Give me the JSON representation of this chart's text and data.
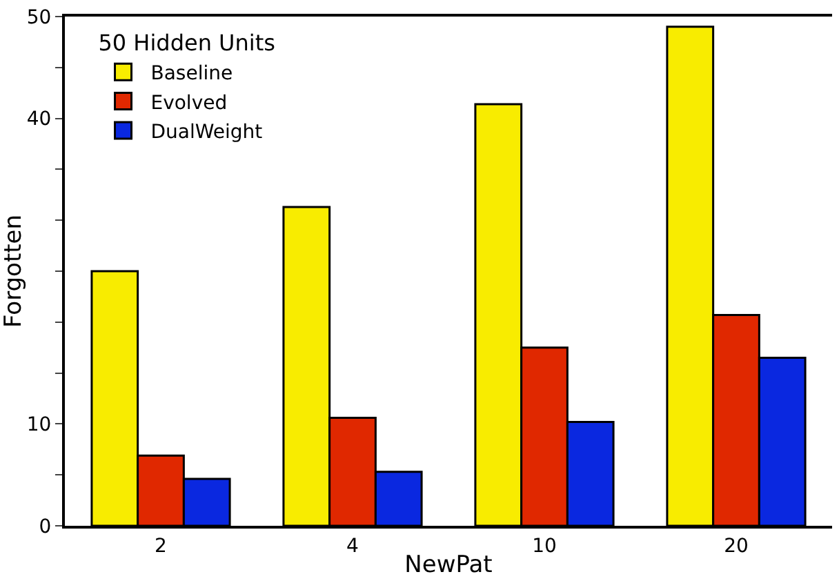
{
  "chart_data": {
    "type": "bar",
    "xlabel": "NewPat",
    "ylabel": "Forgotten",
    "legend_title": "50 Hidden Units",
    "legend": "top left",
    "categories": [
      "2",
      "4",
      "10",
      "20"
    ],
    "ylim": [
      0,
      50
    ],
    "yticks": [
      0,
      {
        "value": 5,
        "label": null
      },
      10,
      {
        "value": 15,
        "label": null
      },
      {
        "value": 20,
        "label": null
      },
      {
        "value": 25,
        "label": null
      },
      {
        "value": 30,
        "label": null
      },
      {
        "value": 35,
        "label": null
      },
      40,
      {
        "value": 45,
        "label": null
      },
      50
    ],
    "series": [
      {
        "name": "Baseline",
        "color": "#f8ec00",
        "values": [
          25.0,
          31.3,
          41.4,
          49.0
        ]
      },
      {
        "name": "Evolved",
        "color": "#e02800",
        "values": [
          6.9,
          10.6,
          17.5,
          20.7
        ]
      },
      {
        "name": "DualWeight",
        "color": "#0a28e0",
        "values": [
          4.6,
          5.3,
          10.2,
          16.5
        ]
      }
    ]
  }
}
